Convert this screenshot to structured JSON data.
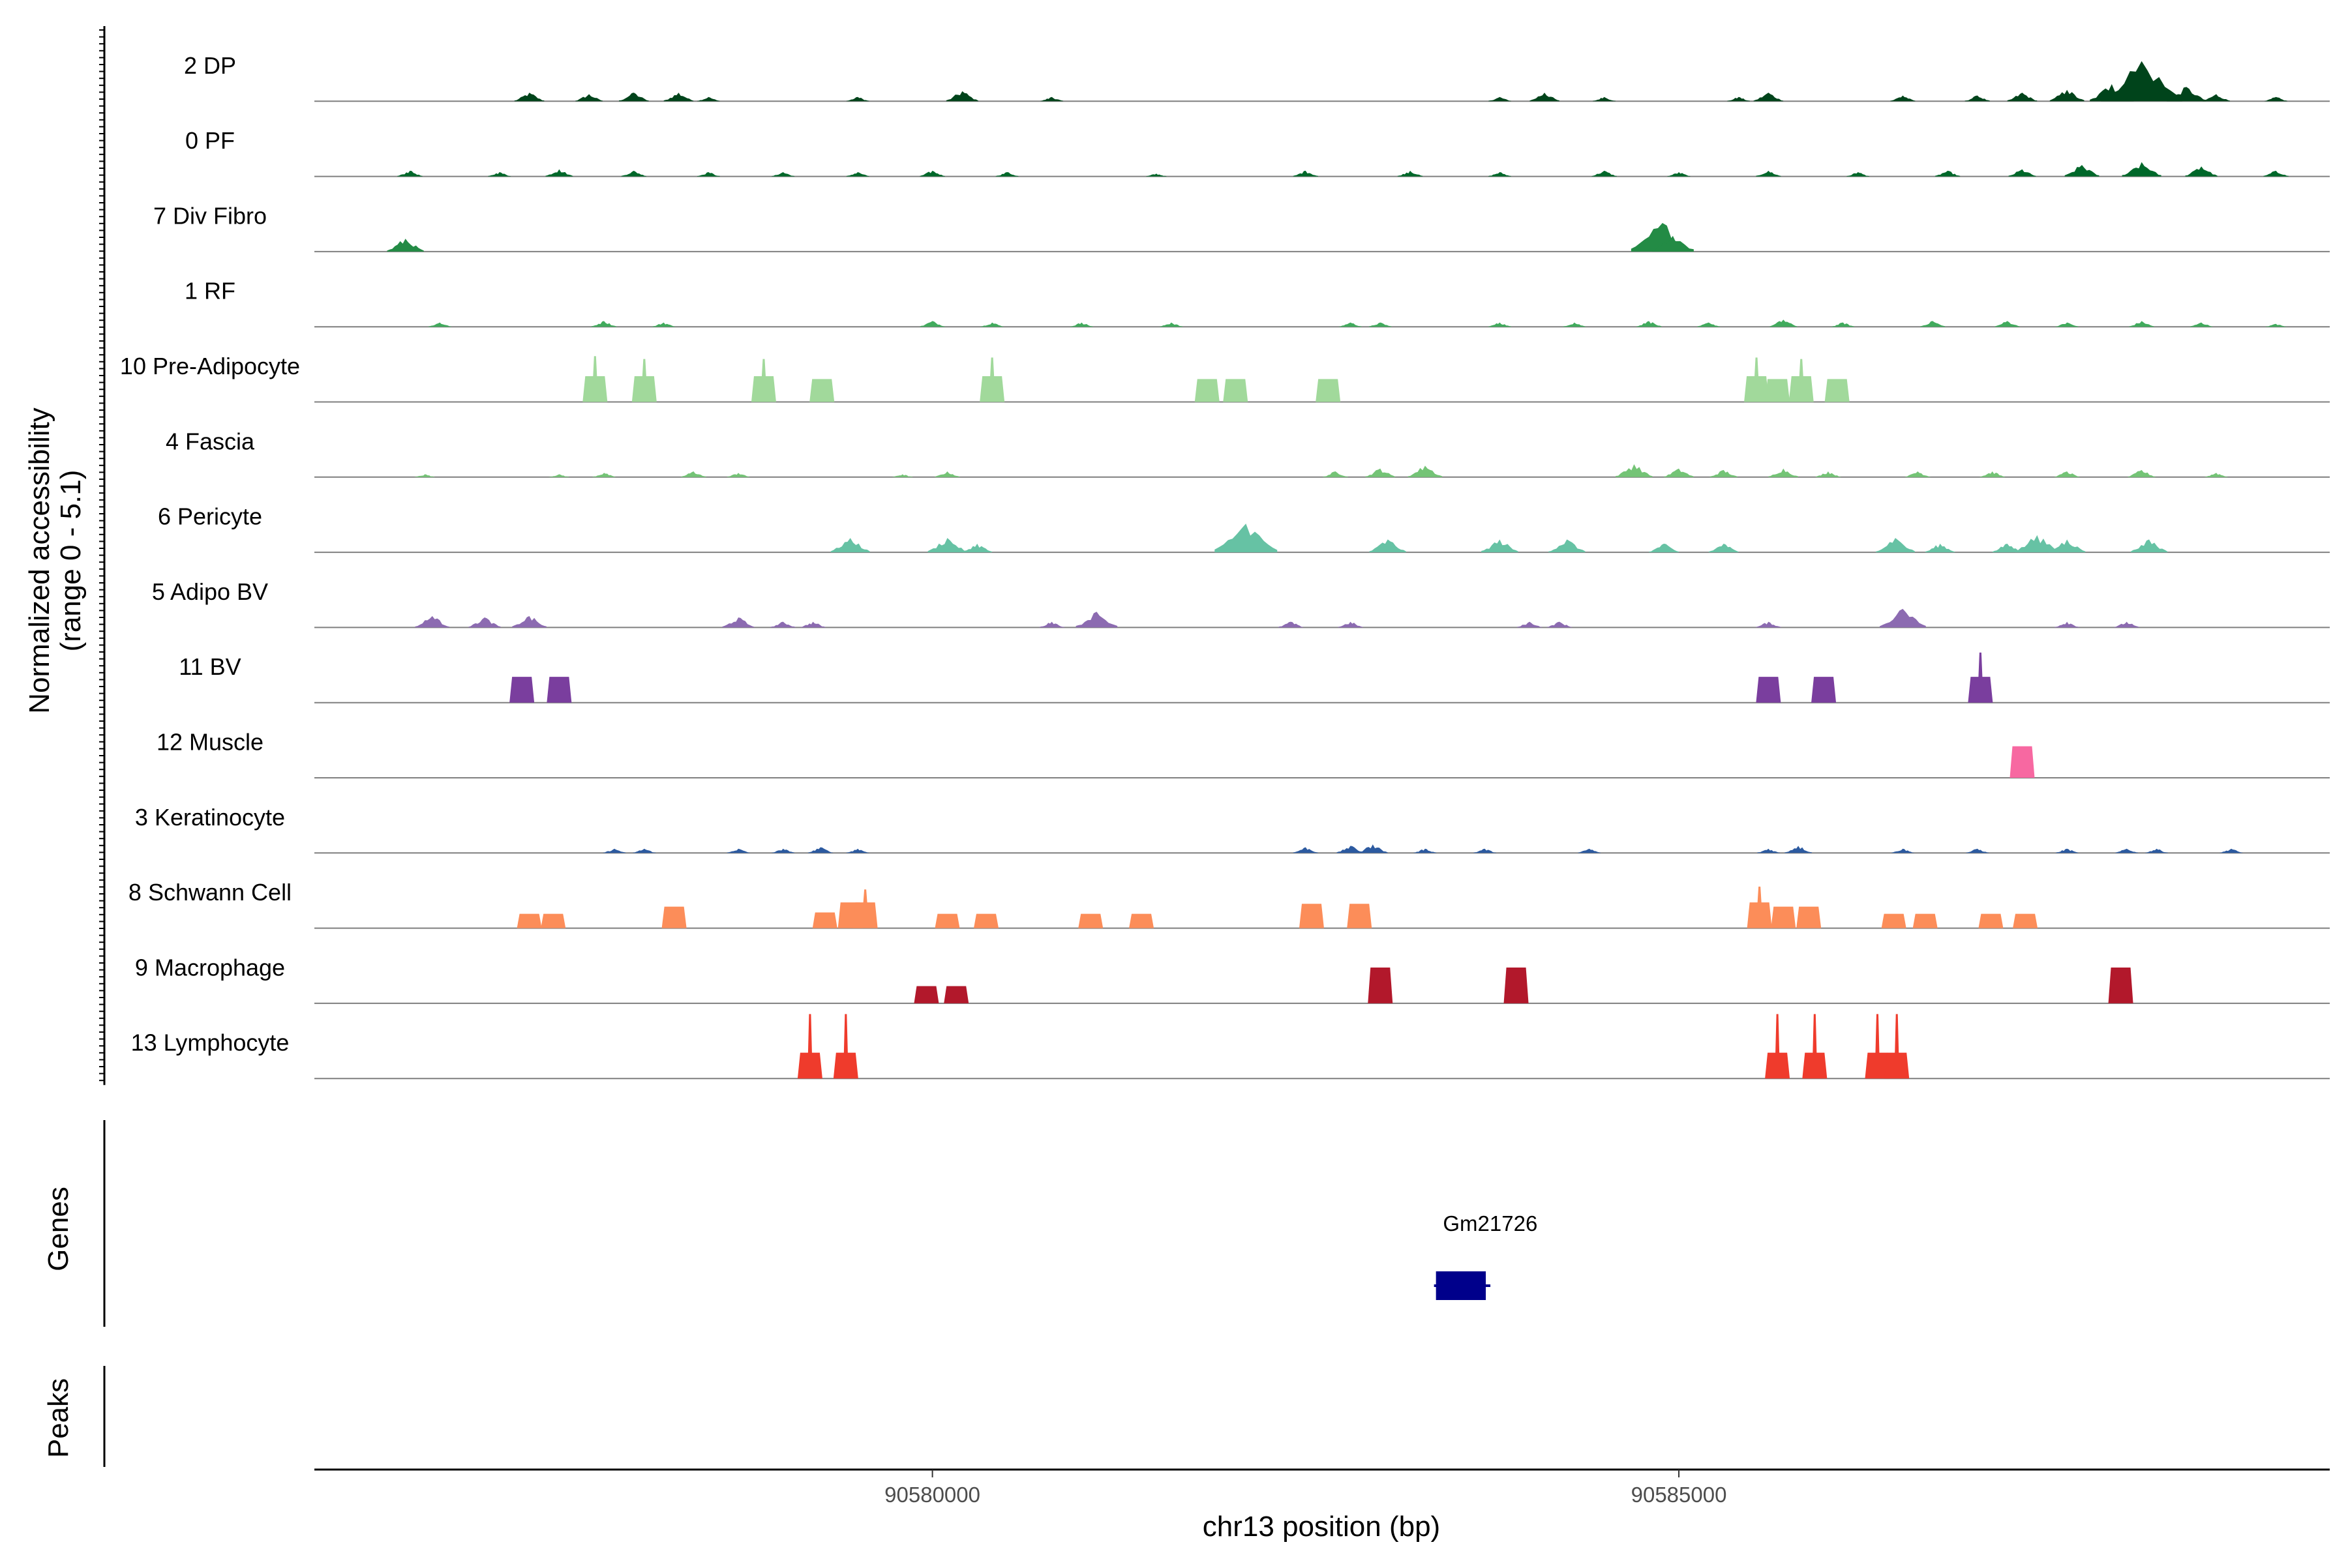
{
  "chart_data": {
    "type": "area",
    "title": "",
    "ylabel_line1": "Normalized accessibility",
    "ylabel_line2": "(range 0 - 5.1)",
    "ylim": [
      0,
      5.1
    ],
    "xlabel": "chr13 position (bp)",
    "xlim": [
      90575860,
      90589360
    ],
    "x_ticks": [
      {
        "value": 90580000,
        "label": "90580000"
      },
      {
        "value": 90585000,
        "label": "90585000"
      }
    ],
    "genes_panel_label": "Genes",
    "peaks_panel_label": "Peaks",
    "genes": [
      {
        "name": "Gm21726",
        "start": 90583360,
        "end": 90583720
      }
    ],
    "tracks": [
      {
        "name": "2 DP",
        "color": "#00441b",
        "style": "continuous",
        "peaks": [
          [
            90577300,
            0.6
          ],
          [
            90577700,
            0.5
          ],
          [
            90578000,
            0.6
          ],
          [
            90578300,
            0.6
          ],
          [
            90578500,
            0.3
          ],
          [
            90579500,
            0.3
          ],
          [
            90580200,
            0.7
          ],
          [
            90580800,
            0.3
          ],
          [
            90583800,
            0.3
          ],
          [
            90584100,
            0.6
          ],
          [
            90584500,
            0.3
          ],
          [
            90585400,
            0.3
          ],
          [
            90585600,
            0.6
          ],
          [
            90586500,
            0.4
          ],
          [
            90587000,
            0.4
          ],
          [
            90587300,
            0.6
          ],
          [
            90587600,
            0.8
          ],
          [
            90587900,
            1.2
          ],
          [
            90588100,
            2.8
          ],
          [
            90588400,
            1.0
          ],
          [
            90588600,
            0.5
          ],
          [
            90589000,
            0.3
          ]
        ]
      },
      {
        "name": "0 PF",
        "color": "#00682a",
        "style": "continuous",
        "peaks": [
          [
            90576500,
            0.4
          ],
          [
            90577100,
            0.3
          ],
          [
            90577500,
            0.5
          ],
          [
            90578000,
            0.4
          ],
          [
            90578500,
            0.3
          ],
          [
            90579000,
            0.3
          ],
          [
            90579500,
            0.3
          ],
          [
            90580000,
            0.4
          ],
          [
            90580500,
            0.3
          ],
          [
            90581500,
            0.2
          ],
          [
            90582500,
            0.4
          ],
          [
            90583200,
            0.4
          ],
          [
            90583800,
            0.3
          ],
          [
            90584500,
            0.4
          ],
          [
            90585000,
            0.3
          ],
          [
            90585600,
            0.4
          ],
          [
            90586200,
            0.3
          ],
          [
            90586800,
            0.4
          ],
          [
            90587300,
            0.5
          ],
          [
            90587700,
            0.8
          ],
          [
            90588100,
            1.0
          ],
          [
            90588500,
            0.7
          ],
          [
            90589000,
            0.4
          ]
        ]
      },
      {
        "name": "7 Div Fibro",
        "color": "#238b45",
        "style": "continuous",
        "peaks": [
          [
            90576470,
            0.9
          ],
          [
            90584890,
            2.0
          ],
          [
            90584960,
            1.1
          ]
        ]
      },
      {
        "name": "1 RF",
        "color": "#41ab5d",
        "style": "continuous",
        "peaks": [
          [
            90576700,
            0.3
          ],
          [
            90577800,
            0.4
          ],
          [
            90578200,
            0.3
          ],
          [
            90580000,
            0.4
          ],
          [
            90580400,
            0.3
          ],
          [
            90581000,
            0.3
          ],
          [
            90581600,
            0.3
          ],
          [
            90582800,
            0.3
          ],
          [
            90583000,
            0.3
          ],
          [
            90583800,
            0.3
          ],
          [
            90584300,
            0.3
          ],
          [
            90584800,
            0.4
          ],
          [
            90585200,
            0.3
          ],
          [
            90585700,
            0.5
          ],
          [
            90586100,
            0.3
          ],
          [
            90586700,
            0.4
          ],
          [
            90587200,
            0.4
          ],
          [
            90587600,
            0.3
          ],
          [
            90588100,
            0.4
          ],
          [
            90588500,
            0.3
          ],
          [
            90589000,
            0.2
          ]
        ]
      },
      {
        "name": "10 Pre-Adipocyte",
        "color": "#a1d99b",
        "style": "blocky",
        "peaks": [
          [
            90577740,
            3.2
          ],
          [
            90578070,
            3.0
          ],
          [
            90578870,
            3.0
          ],
          [
            90579260,
            1.6
          ],
          [
            90580400,
            3.1
          ],
          [
            90581840,
            1.6
          ],
          [
            90582030,
            1.6
          ],
          [
            90582650,
            1.6
          ],
          [
            90585520,
            3.1
          ],
          [
            90585660,
            1.6
          ],
          [
            90585820,
            3.0
          ],
          [
            90586060,
            1.6
          ]
        ]
      },
      {
        "name": "4 Fascia",
        "color": "#74c476",
        "style": "continuous",
        "peaks": [
          [
            90576600,
            0.2
          ],
          [
            90577500,
            0.2
          ],
          [
            90577800,
            0.3
          ],
          [
            90578400,
            0.4
          ],
          [
            90578700,
            0.3
          ],
          [
            90579800,
            0.2
          ],
          [
            90580100,
            0.4
          ],
          [
            90582700,
            0.4
          ],
          [
            90583000,
            0.6
          ],
          [
            90583300,
            0.8
          ],
          [
            90584700,
            0.9
          ],
          [
            90585000,
            0.6
          ],
          [
            90585300,
            0.5
          ],
          [
            90585700,
            0.6
          ],
          [
            90586000,
            0.4
          ],
          [
            90586600,
            0.4
          ],
          [
            90587100,
            0.4
          ],
          [
            90587600,
            0.4
          ],
          [
            90588100,
            0.5
          ],
          [
            90588600,
            0.3
          ]
        ]
      },
      {
        "name": "6 Pericyte",
        "color": "#66c2a4",
        "style": "continuous",
        "peaks": [
          [
            90579450,
            1.0
          ],
          [
            90580100,
            1.0
          ],
          [
            90580300,
            0.6
          ],
          [
            90582100,
            2.0
          ],
          [
            90583050,
            0.9
          ],
          [
            90583800,
            0.9
          ],
          [
            90584250,
            0.9
          ],
          [
            90584900,
            0.6
          ],
          [
            90585300,
            0.6
          ],
          [
            90586450,
            1.0
          ],
          [
            90586750,
            0.6
          ],
          [
            90587200,
            0.6
          ],
          [
            90587400,
            1.2
          ],
          [
            90587600,
            0.9
          ],
          [
            90588150,
            0.9
          ]
        ]
      },
      {
        "name": "5 Adipo BV",
        "color": "#8c6bb1",
        "style": "continuous",
        "peaks": [
          [
            90576650,
            0.8
          ],
          [
            90577000,
            0.7
          ],
          [
            90577300,
            0.8
          ],
          [
            90578700,
            0.7
          ],
          [
            90579000,
            0.4
          ],
          [
            90579200,
            0.4
          ],
          [
            90580800,
            0.4
          ],
          [
            90581100,
            1.1
          ],
          [
            90582400,
            0.4
          ],
          [
            90582800,
            0.4
          ],
          [
            90584000,
            0.4
          ],
          [
            90584200,
            0.4
          ],
          [
            90585600,
            0.4
          ],
          [
            90586500,
            1.3
          ],
          [
            90587600,
            0.4
          ],
          [
            90588000,
            0.4
          ]
        ]
      },
      {
        "name": "11 BV",
        "color": "#7a3e9e",
        "style": "blocky",
        "peaks": [
          [
            90577250,
            1.8
          ],
          [
            90577500,
            1.8
          ],
          [
            90585600,
            1.8
          ],
          [
            90585970,
            1.8
          ],
          [
            90587020,
            3.5
          ]
        ]
      },
      {
        "name": "12 Muscle",
        "color": "#f768a1",
        "style": "blocky",
        "peaks": [
          [
            90587300,
            2.2
          ]
        ]
      },
      {
        "name": "3 Keratinocyte",
        "color": "#2c5aa0",
        "style": "continuous",
        "peaks": [
          [
            90577870,
            0.3
          ],
          [
            90578070,
            0.3
          ],
          [
            90578700,
            0.3
          ],
          [
            90579000,
            0.3
          ],
          [
            90579250,
            0.4
          ],
          [
            90579500,
            0.3
          ],
          [
            90582500,
            0.4
          ],
          [
            90582800,
            0.5
          ],
          [
            90582950,
            0.6
          ],
          [
            90583300,
            0.3
          ],
          [
            90583700,
            0.3
          ],
          [
            90584400,
            0.3
          ],
          [
            90585600,
            0.3
          ],
          [
            90585800,
            0.5
          ],
          [
            90586500,
            0.3
          ],
          [
            90587000,
            0.3
          ],
          [
            90587600,
            0.3
          ],
          [
            90588000,
            0.3
          ],
          [
            90588200,
            0.3
          ],
          [
            90588700,
            0.3
          ]
        ]
      },
      {
        "name": "8 Schwann Cell",
        "color": "#fc8d59",
        "style": "blocky",
        "peaks": [
          [
            90577300,
            1.0
          ],
          [
            90577460,
            1.0
          ],
          [
            90578270,
            1.5
          ],
          [
            90579280,
            1.1
          ],
          [
            90579450,
            1.8
          ],
          [
            90579550,
            2.7
          ],
          [
            90580100,
            1.0
          ],
          [
            90580360,
            1.0
          ],
          [
            90581060,
            1.0
          ],
          [
            90581400,
            1.0
          ],
          [
            90582540,
            1.7
          ],
          [
            90582860,
            1.7
          ],
          [
            90585540,
            2.9
          ],
          [
            90585700,
            1.5
          ],
          [
            90585870,
            1.5
          ],
          [
            90586440,
            1.0
          ],
          [
            90586650,
            1.0
          ],
          [
            90587090,
            1.0
          ],
          [
            90587320,
            1.0
          ]
        ]
      },
      {
        "name": "9 Macrophage",
        "color": "#b2182b",
        "style": "blocky",
        "peaks": [
          [
            90579960,
            1.2
          ],
          [
            90580160,
            1.2
          ],
          [
            90583000,
            2.5
          ],
          [
            90583910,
            2.5
          ],
          [
            90587960,
            2.5
          ]
        ]
      },
      {
        "name": "13 Lymphocyte",
        "color": "#ef3b2c",
        "style": "blocky",
        "peaks": [
          [
            90579180,
            4.5
          ],
          [
            90579420,
            4.5
          ],
          [
            90585660,
            4.5
          ],
          [
            90585910,
            4.5
          ],
          [
            90586330,
            4.5
          ],
          [
            90586460,
            4.5
          ]
        ]
      }
    ]
  }
}
